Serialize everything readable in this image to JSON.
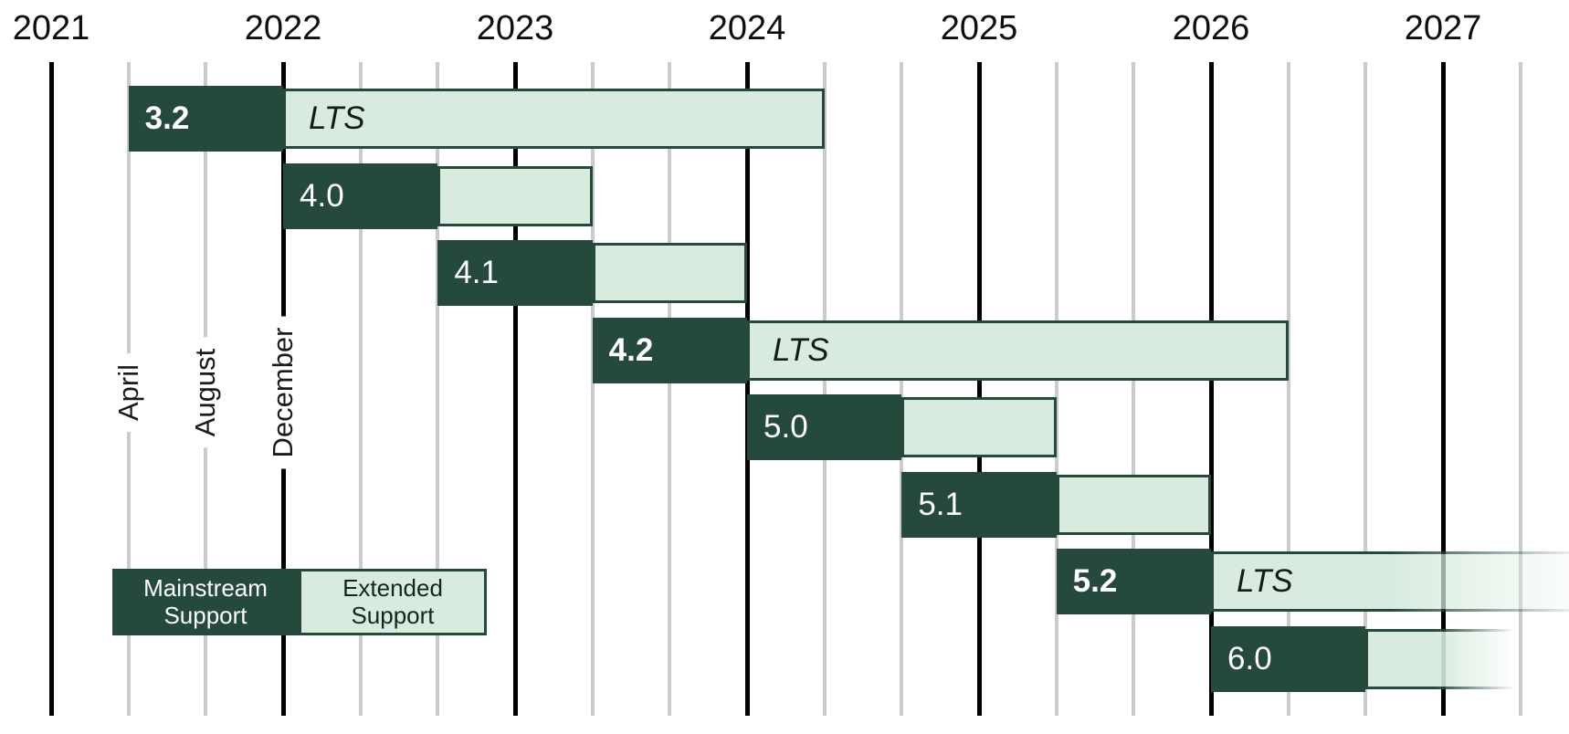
{
  "chart_data": {
    "type": "bar",
    "subtype": "gantt-release-support-timeline",
    "title": "",
    "x_axis": {
      "years": [
        "2021",
        "2022",
        "2023",
        "2024",
        "2025",
        "2026",
        "2027"
      ],
      "month_gridlines": [
        "April",
        "August",
        "December"
      ],
      "gridline_interval_months": 4,
      "grid_on": true
    },
    "legend": {
      "mainstream_label": "Mainstream Support",
      "extended_label": "Extended Support",
      "position": "bottom-left"
    },
    "releases": [
      {
        "version": "3.2",
        "lts": true,
        "lts_label": "LTS",
        "mainstream": {
          "start": "2021-04",
          "end": "2021-12"
        },
        "extended": {
          "start": "2021-12",
          "end": "2024-04",
          "open_ended": false,
          "fade_out": false
        }
      },
      {
        "version": "4.0",
        "lts": false,
        "lts_label": "",
        "mainstream": {
          "start": "2021-12",
          "end": "2022-08"
        },
        "extended": {
          "start": "2022-08",
          "end": "2023-04",
          "open_ended": false,
          "fade_out": false
        }
      },
      {
        "version": "4.1",
        "lts": false,
        "lts_label": "",
        "mainstream": {
          "start": "2022-08",
          "end": "2023-04"
        },
        "extended": {
          "start": "2023-04",
          "end": "2023-12",
          "open_ended": false,
          "fade_out": false
        }
      },
      {
        "version": "4.2",
        "lts": true,
        "lts_label": "LTS",
        "mainstream": {
          "start": "2023-04",
          "end": "2023-12"
        },
        "extended": {
          "start": "2023-12",
          "end": "2026-04",
          "open_ended": false,
          "fade_out": false
        }
      },
      {
        "version": "5.0",
        "lts": false,
        "lts_label": "",
        "mainstream": {
          "start": "2023-12",
          "end": "2024-08"
        },
        "extended": {
          "start": "2024-08",
          "end": "2025-04",
          "open_ended": false,
          "fade_out": false
        }
      },
      {
        "version": "5.1",
        "lts": false,
        "lts_label": "",
        "mainstream": {
          "start": "2024-08",
          "end": "2025-04"
        },
        "extended": {
          "start": "2025-04",
          "end": "2025-12",
          "open_ended": false,
          "fade_out": false
        }
      },
      {
        "version": "5.2",
        "lts": true,
        "lts_label": "LTS",
        "mainstream": {
          "start": "2025-04",
          "end": "2025-12"
        },
        "extended": {
          "start": "2025-12",
          "end": "",
          "open_ended": true,
          "fade_out": true
        }
      },
      {
        "version": "6.0",
        "lts": false,
        "lts_label": "",
        "mainstream": {
          "start": "2025-12",
          "end": "2026-08"
        },
        "extended": {
          "start": "2026-08",
          "end": "2027-04",
          "open_ended": false,
          "fade_out": true
        }
      }
    ],
    "colors": {
      "mainstream": "#25493A",
      "extended": "#D8EBDE",
      "extended_border": "#25493A",
      "gridline_year": "#000000",
      "gridline_month": "#CBCBCB",
      "year_label": "#0D0D0D",
      "month_label": "#1A1A1A",
      "version_label": "#FFFFFF",
      "lts_label_color": "#101E17",
      "background": "#FFFFFF"
    }
  }
}
